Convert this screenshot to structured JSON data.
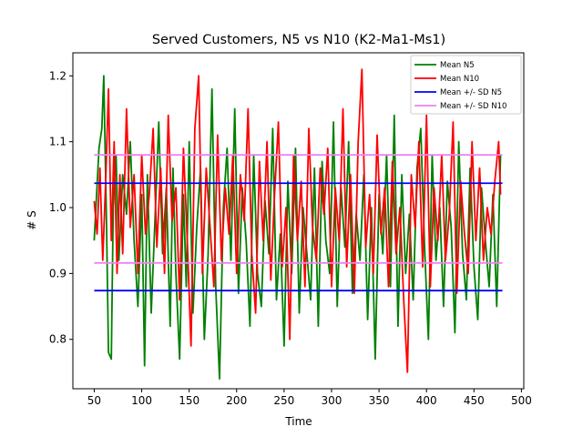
{
  "chart_data": {
    "type": "line",
    "title": "Served Customers, N5 vs N10 (K2-Ma1-Ms1)",
    "xlabel": "Time",
    "ylabel": "# S",
    "xlim": [
      27.5,
      502.5
    ],
    "ylim": [
      0.725,
      1.235
    ],
    "xticks": [
      50,
      100,
      150,
      200,
      250,
      300,
      350,
      400,
      450,
      500
    ],
    "yticks": [
      0.8,
      0.9,
      1.0,
      1.1,
      1.2
    ],
    "grid": false,
    "legend_position": "top-right",
    "series": [
      {
        "name": "Mean N5",
        "color": "#008000",
        "x": [
          50,
          55,
          58,
          60,
          63,
          65,
          68,
          70,
          73,
          76,
          80,
          84,
          88,
          92,
          96,
          100,
          103,
          106,
          110,
          114,
          118,
          122,
          126,
          130,
          133,
          136,
          140,
          144,
          147,
          150,
          154,
          158,
          162,
          166,
          170,
          174,
          178,
          182,
          186,
          190,
          194,
          198,
          202,
          206,
          210,
          214,
          218,
          222,
          226,
          230,
          234,
          238,
          242,
          246,
          250,
          254,
          258,
          262,
          266,
          270,
          274,
          278,
          282,
          286,
          290,
          294,
          298,
          302,
          306,
          310,
          314,
          318,
          322,
          326,
          330,
          334,
          338,
          342,
          346,
          350,
          354,
          358,
          362,
          366,
          370,
          374,
          378,
          382,
          386,
          390,
          394,
          398,
          402,
          406,
          410,
          414,
          418,
          422,
          426,
          430,
          434,
          438,
          442,
          446,
          450,
          454,
          458,
          462,
          466,
          470,
          474,
          478
        ],
        "values": [
          0.95,
          1.09,
          1.12,
          1.2,
          0.97,
          0.78,
          0.77,
          1.0,
          1.08,
          0.92,
          1.05,
          0.99,
          1.1,
          0.95,
          0.85,
          1.02,
          0.76,
          1.05,
          0.84,
          0.98,
          1.13,
          0.93,
          1.03,
          0.82,
          1.06,
          0.9,
          0.77,
          1.02,
          0.88,
          1.1,
          0.84,
          0.97,
          1.06,
          0.8,
          0.93,
          1.18,
          0.88,
          0.74,
          1.0,
          1.09,
          0.92,
          1.15,
          0.87,
          1.03,
          0.95,
          0.82,
          1.08,
          0.9,
          0.85,
          1.01,
          0.93,
          1.12,
          0.86,
          0.96,
          0.79,
          1.04,
          0.9,
          1.09,
          0.84,
          1.0,
          0.93,
          0.86,
          1.06,
          0.82,
          1.07,
          0.95,
          0.9,
          1.13,
          0.85,
          1.03,
          0.94,
          1.1,
          0.87,
          0.99,
          0.92,
          1.05,
          0.83,
          1.0,
          0.77,
          1.02,
          0.93,
          1.08,
          0.88,
          1.14,
          0.82,
          1.05,
          0.9,
          0.99,
          0.86,
          1.06,
          1.12,
          0.94,
          0.8,
          1.08,
          0.92,
          1.0,
          0.85,
          1.04,
          0.97,
          0.81,
          1.1,
          0.93,
          0.86,
          1.06,
          0.91,
          0.83,
          1.03,
          0.95,
          0.88,
          1.02,
          0.85,
          1.08
        ]
      },
      {
        "name": "Mean N10",
        "color": "#ff0000",
        "x": [
          50,
          53,
          56,
          59,
          62,
          65,
          68,
          71,
          74,
          77,
          80,
          84,
          88,
          92,
          96,
          100,
          104,
          108,
          112,
          116,
          120,
          124,
          128,
          132,
          136,
          140,
          144,
          148,
          152,
          156,
          160,
          164,
          168,
          172,
          176,
          180,
          184,
          188,
          192,
          196,
          200,
          204,
          208,
          212,
          216,
          220,
          224,
          228,
          232,
          236,
          240,
          244,
          248,
          252,
          256,
          260,
          264,
          268,
          272,
          276,
          280,
          284,
          288,
          292,
          296,
          300,
          304,
          308,
          312,
          316,
          320,
          324,
          328,
          332,
          336,
          340,
          344,
          348,
          352,
          356,
          360,
          364,
          368,
          372,
          376,
          380,
          384,
          388,
          392,
          396,
          400,
          404,
          408,
          412,
          416,
          420,
          424,
          428,
          432,
          436,
          440,
          444,
          448,
          452,
          456,
          460,
          464,
          468,
          472,
          476,
          478
        ],
        "values": [
          1.01,
          0.96,
          1.06,
          0.92,
          1.04,
          1.18,
          0.95,
          1.1,
          0.9,
          1.05,
          0.93,
          1.15,
          0.97,
          1.05,
          0.9,
          1.08,
          0.96,
          1.02,
          1.12,
          0.94,
          1.06,
          0.9,
          1.14,
          0.98,
          1.03,
          0.86,
          1.09,
          0.95,
          0.79,
          1.12,
          1.2,
          0.9,
          1.06,
          0.97,
          0.88,
          1.11,
          0.92,
          1.03,
          0.96,
          1.08,
          0.9,
          1.05,
          0.98,
          1.15,
          0.93,
          0.84,
          1.07,
          0.95,
          1.1,
          0.89,
          1.02,
          1.13,
          0.91,
          1.0,
          0.8,
          1.08,
          0.95,
          1.04,
          0.88,
          1.12,
          0.97,
          0.92,
          1.06,
          0.99,
          1.09,
          0.88,
          1.03,
          0.95,
          1.15,
          0.91,
          1.05,
          0.87,
          1.1,
          1.21,
          0.94,
          1.02,
          0.9,
          1.11,
          0.96,
          1.03,
          0.88,
          1.07,
          0.93,
          1.0,
          0.86,
          0.75,
          1.05,
          0.97,
          1.1,
          0.91,
          1.14,
          0.88,
          1.03,
          0.95,
          1.08,
          0.92,
          0.99,
          1.13,
          0.87,
          1.04,
          0.96,
          0.9,
          1.1,
          0.95,
          1.06,
          0.92,
          1.0,
          0.96,
          1.04,
          1.1,
          1.02
        ]
      },
      {
        "name": "Mean +/- SD N5",
        "color": "#0000ff",
        "x": [
          50,
          480
        ],
        "lines": [
          1.037,
          0.874
        ]
      },
      {
        "name": "Mean +/- SD N10",
        "color": "#ee82ee",
        "x": [
          50,
          480
        ],
        "lines": [
          1.08,
          0.916
        ]
      }
    ]
  }
}
